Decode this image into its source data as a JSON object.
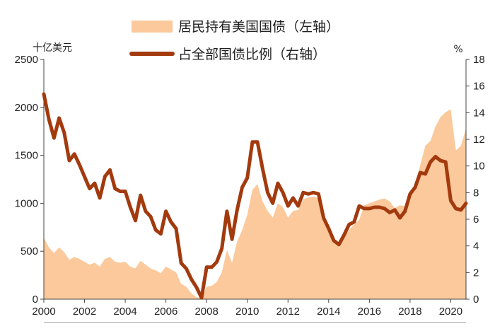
{
  "chart_data": {
    "type": "area+line",
    "left_axis_unit": "十亿美元",
    "right_axis_unit": "%",
    "x_ticks": [
      "2000",
      "2002",
      "2004",
      "2006",
      "2008",
      "2010",
      "2012",
      "2014",
      "2016",
      "2018",
      "2020"
    ],
    "y_left_ticks": [
      "0",
      "500",
      "1000",
      "1500",
      "2000",
      "2500"
    ],
    "y_right_ticks": [
      "0",
      "2",
      "4",
      "6",
      "8",
      "10",
      "12",
      "14",
      "16",
      "18"
    ],
    "xlim": [
      2000,
      2020.75
    ],
    "ylim_left": [
      0,
      2500
    ],
    "ylim_right": [
      0,
      18
    ],
    "legend_position": "top-center",
    "series": [
      {
        "name": "居民持有美国国债（左轴）",
        "type": "area",
        "axis": "left",
        "color": "#fbc99b",
        "x": [
          2000,
          2000.25,
          2000.5,
          2000.75,
          2001,
          2001.25,
          2001.5,
          2001.75,
          2002,
          2002.25,
          2002.5,
          2002.75,
          2003,
          2003.25,
          2003.5,
          2003.75,
          2004,
          2004.25,
          2004.5,
          2004.75,
          2005,
          2005.25,
          2005.5,
          2005.75,
          2006,
          2006.25,
          2006.5,
          2006.75,
          2007,
          2007.25,
          2007.5,
          2007.75,
          2008,
          2008.25,
          2008.5,
          2008.75,
          2009,
          2009.25,
          2009.5,
          2009.75,
          2010,
          2010.25,
          2010.5,
          2010.75,
          2011,
          2011.25,
          2011.5,
          2011.75,
          2012,
          2012.25,
          2012.5,
          2012.75,
          2013,
          2013.25,
          2013.5,
          2013.75,
          2014,
          2014.25,
          2014.5,
          2014.75,
          2015,
          2015.25,
          2015.5,
          2015.75,
          2016,
          2016.25,
          2016.5,
          2016.75,
          2017,
          2017.25,
          2017.5,
          2017.75,
          2018,
          2018.25,
          2018.5,
          2018.75,
          2019,
          2019.25,
          2019.5,
          2019.75,
          2020,
          2020.25,
          2020.5,
          2020.75
        ],
        "values": [
          640,
          540,
          480,
          540,
          490,
          410,
          440,
          420,
          390,
          360,
          380,
          340,
          420,
          440,
          390,
          380,
          390,
          340,
          320,
          400,
          360,
          320,
          300,
          270,
          340,
          310,
          280,
          160,
          130,
          60,
          20,
          10,
          130,
          140,
          180,
          280,
          510,
          380,
          600,
          720,
          880,
          1140,
          1200,
          1020,
          920,
          850,
          1000,
          960,
          850,
          920,
          930,
          1040,
          1060,
          1070,
          1050,
          900,
          740,
          600,
          560,
          640,
          720,
          780,
          830,
          980,
          1000,
          1020,
          1040,
          1050,
          1020,
          950,
          980,
          970,
          1100,
          1200,
          1400,
          1600,
          1650,
          1800,
          1900,
          1950,
          1980,
          1550,
          1600,
          1780
        ]
      },
      {
        "name": "占全部国债比例（右轴）",
        "type": "line",
        "axis": "right",
        "color": "#a33a0e",
        "x": [
          2000,
          2000.25,
          2000.5,
          2000.75,
          2001,
          2001.25,
          2001.5,
          2001.75,
          2002,
          2002.25,
          2002.5,
          2002.75,
          2003,
          2003.25,
          2003.5,
          2003.75,
          2004,
          2004.25,
          2004.5,
          2004.75,
          2005,
          2005.25,
          2005.5,
          2005.75,
          2006,
          2006.25,
          2006.5,
          2006.75,
          2007,
          2007.25,
          2007.5,
          2007.75,
          2008,
          2008.25,
          2008.5,
          2008.75,
          2009,
          2009.25,
          2009.5,
          2009.75,
          2010,
          2010.25,
          2010.5,
          2010.75,
          2011,
          2011.25,
          2011.5,
          2011.75,
          2012,
          2012.25,
          2012.5,
          2012.75,
          2013,
          2013.25,
          2013.5,
          2013.75,
          2014,
          2014.25,
          2014.5,
          2014.75,
          2015,
          2015.25,
          2015.5,
          2015.75,
          2016,
          2016.25,
          2016.5,
          2016.75,
          2017,
          2017.25,
          2017.5,
          2017.75,
          2018,
          2018.25,
          2018.5,
          2018.75,
          2019,
          2019.25,
          2019.5,
          2019.75,
          2020,
          2020.25,
          2020.5,
          2020.75
        ],
        "values": [
          15.4,
          13.5,
          12.1,
          13.6,
          12.5,
          10.4,
          10.9,
          10.1,
          9.2,
          8.3,
          8.7,
          7.6,
          9.2,
          9.7,
          8.3,
          8.1,
          8.1,
          6.9,
          5.9,
          7.8,
          6.6,
          6.2,
          5.2,
          4.9,
          6.6,
          5.8,
          5.3,
          2.7,
          2.3,
          1.5,
          0.9,
          0.1,
          2.4,
          2.4,
          2.8,
          3.8,
          6.6,
          4.5,
          6.7,
          8.4,
          9.1,
          11.8,
          11.8,
          9.8,
          8.0,
          7.2,
          8.7,
          8.0,
          7.0,
          7.6,
          7.0,
          8.0,
          7.9,
          8.0,
          7.9,
          6.1,
          5.3,
          4.4,
          4.1,
          4.8,
          5.6,
          5.8,
          7.0,
          6.8,
          6.8,
          6.9,
          6.9,
          6.8,
          6.5,
          6.7,
          6.1,
          6.6,
          7.9,
          8.4,
          9.5,
          9.4,
          10.3,
          10.7,
          10.4,
          10.3,
          7.4,
          6.8,
          6.7,
          7.2
        ]
      }
    ]
  }
}
